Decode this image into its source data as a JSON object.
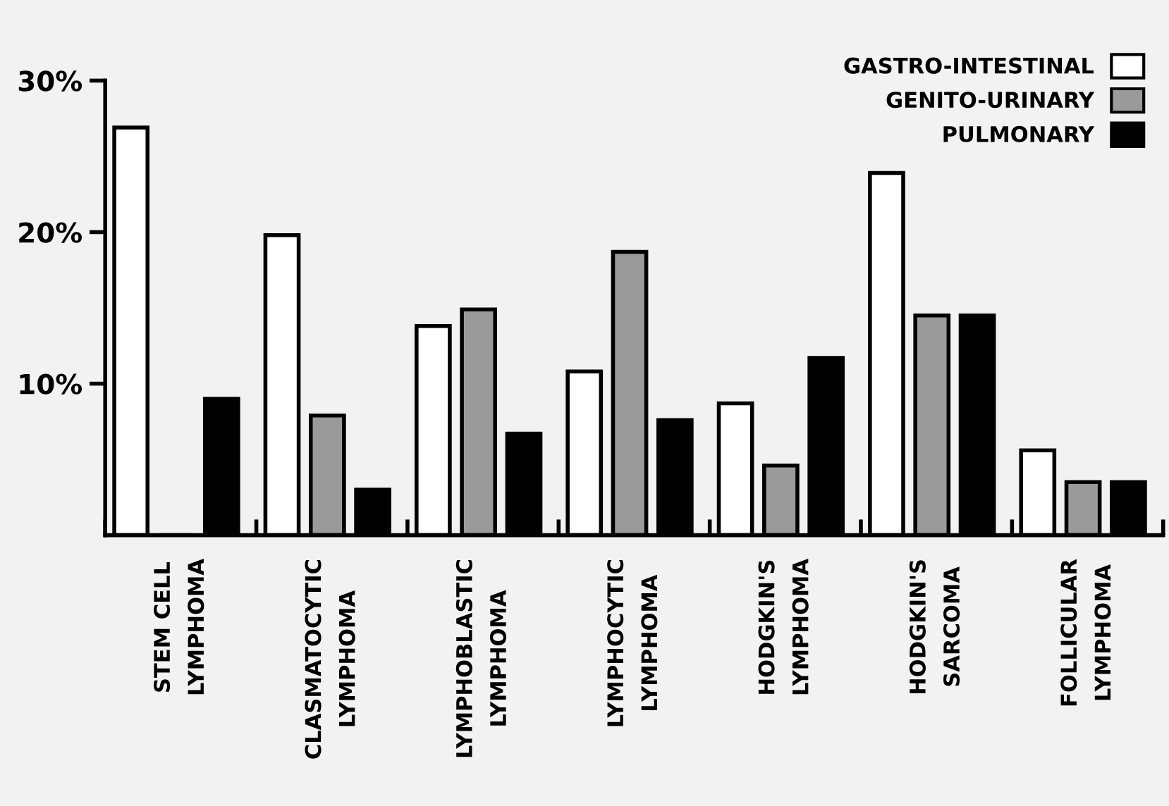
{
  "chart_data": {
    "type": "bar",
    "categories": [
      "STEM CELL\nLYMPHOMA",
      "CLASMATOCYTIC\nLYMPHOMA",
      "LYMPHOBLASTIC\nLYMPHOMA",
      "LYMPHOCYTIC\nLYMPHOMA",
      "HODGKIN'S\nLYMPHOMA",
      "HODGKIN'S\nSARCOMA",
      "FOLLICULAR\nLYMPHOMA"
    ],
    "series": [
      {
        "name": "GASTRO-INTESTINAL",
        "color": "#ffffff",
        "values": [
          26.9,
          19.8,
          13.8,
          10.8,
          8.7,
          23.9,
          5.6
        ]
      },
      {
        "name": "GENITO-URINARY",
        "color": "#9a9a9a",
        "values": [
          0,
          7.9,
          14.9,
          18.7,
          4.6,
          14.5,
          3.5
        ]
      },
      {
        "name": "PULMONARY",
        "color": "#000000",
        "values": [
          9.0,
          3.0,
          6.7,
          7.6,
          11.7,
          14.5,
          3.5
        ]
      }
    ],
    "ylim": [
      0,
      30
    ],
    "yticks": [
      {
        "value": 10,
        "label": "10%"
      },
      {
        "value": 20,
        "label": "20%"
      },
      {
        "value": 30,
        "label": "30%"
      }
    ],
    "grid": false,
    "legend": "top right"
  }
}
